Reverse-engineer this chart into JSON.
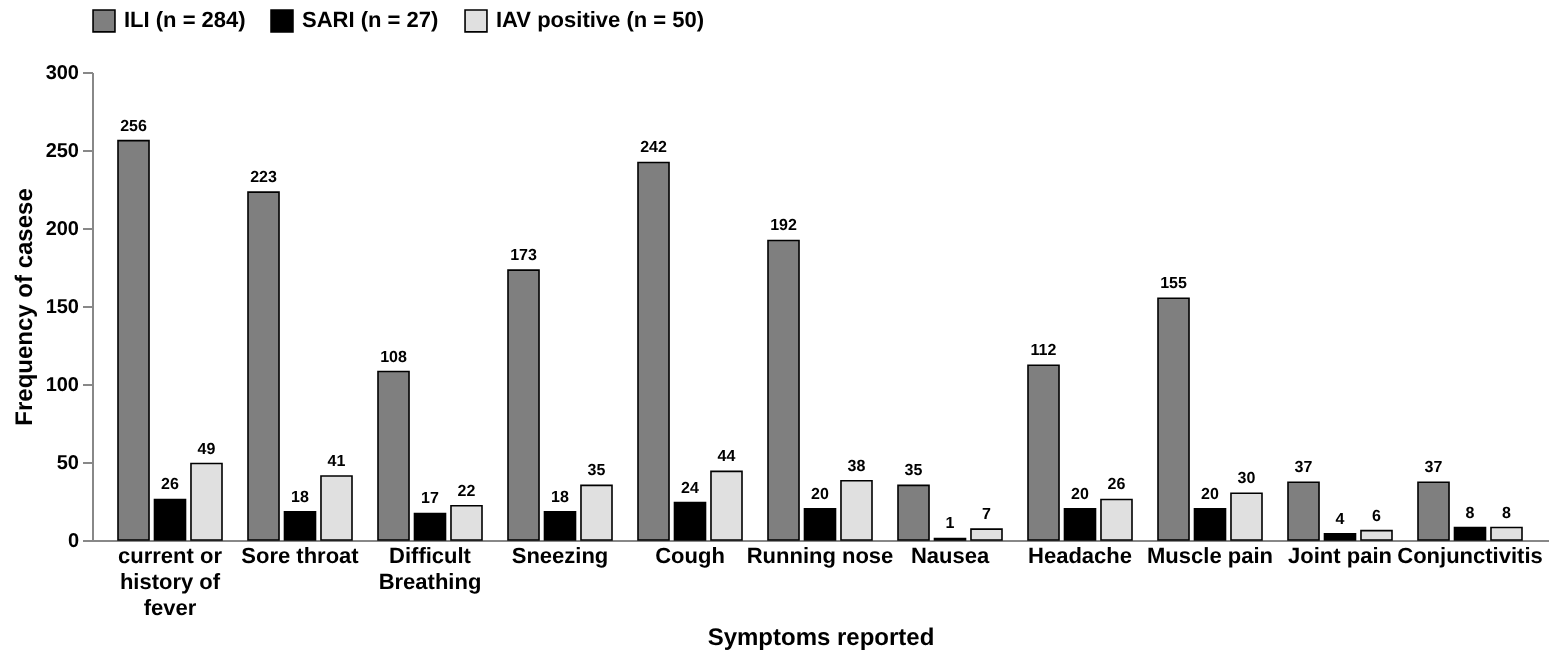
{
  "chart_data": {
    "type": "bar",
    "xlabel": "Symptoms reported",
    "ylabel": "Frequency of casese",
    "categories": [
      "current or history of fever",
      "Sore throat",
      "Difficult Breathing",
      "Sneezing",
      "Cough",
      "Running nose",
      "Nausea",
      "Headache",
      "Muscle pain",
      "Joint pain",
      "Conjunctivitis"
    ],
    "series": [
      {
        "name": "ILI (n = 284)",
        "color": "#7f7f7f",
        "values": [
          256,
          223,
          108,
          173,
          242,
          192,
          35,
          112,
          155,
          37,
          37
        ]
      },
      {
        "name": "SARI (n = 27)",
        "color": "#000000",
        "values": [
          26,
          18,
          17,
          18,
          24,
          20,
          1,
          20,
          20,
          4,
          8
        ]
      },
      {
        "name": "IAV positive (n = 50)",
        "color": "#e0e0e0",
        "values": [
          49,
          41,
          22,
          35,
          44,
          38,
          7,
          26,
          30,
          6,
          8
        ]
      }
    ],
    "ylim": [
      0,
      300
    ],
    "yticks": [
      0,
      50,
      100,
      150,
      200,
      250,
      300
    ],
    "grid": false,
    "legend": "top",
    "data_labels": true
  }
}
